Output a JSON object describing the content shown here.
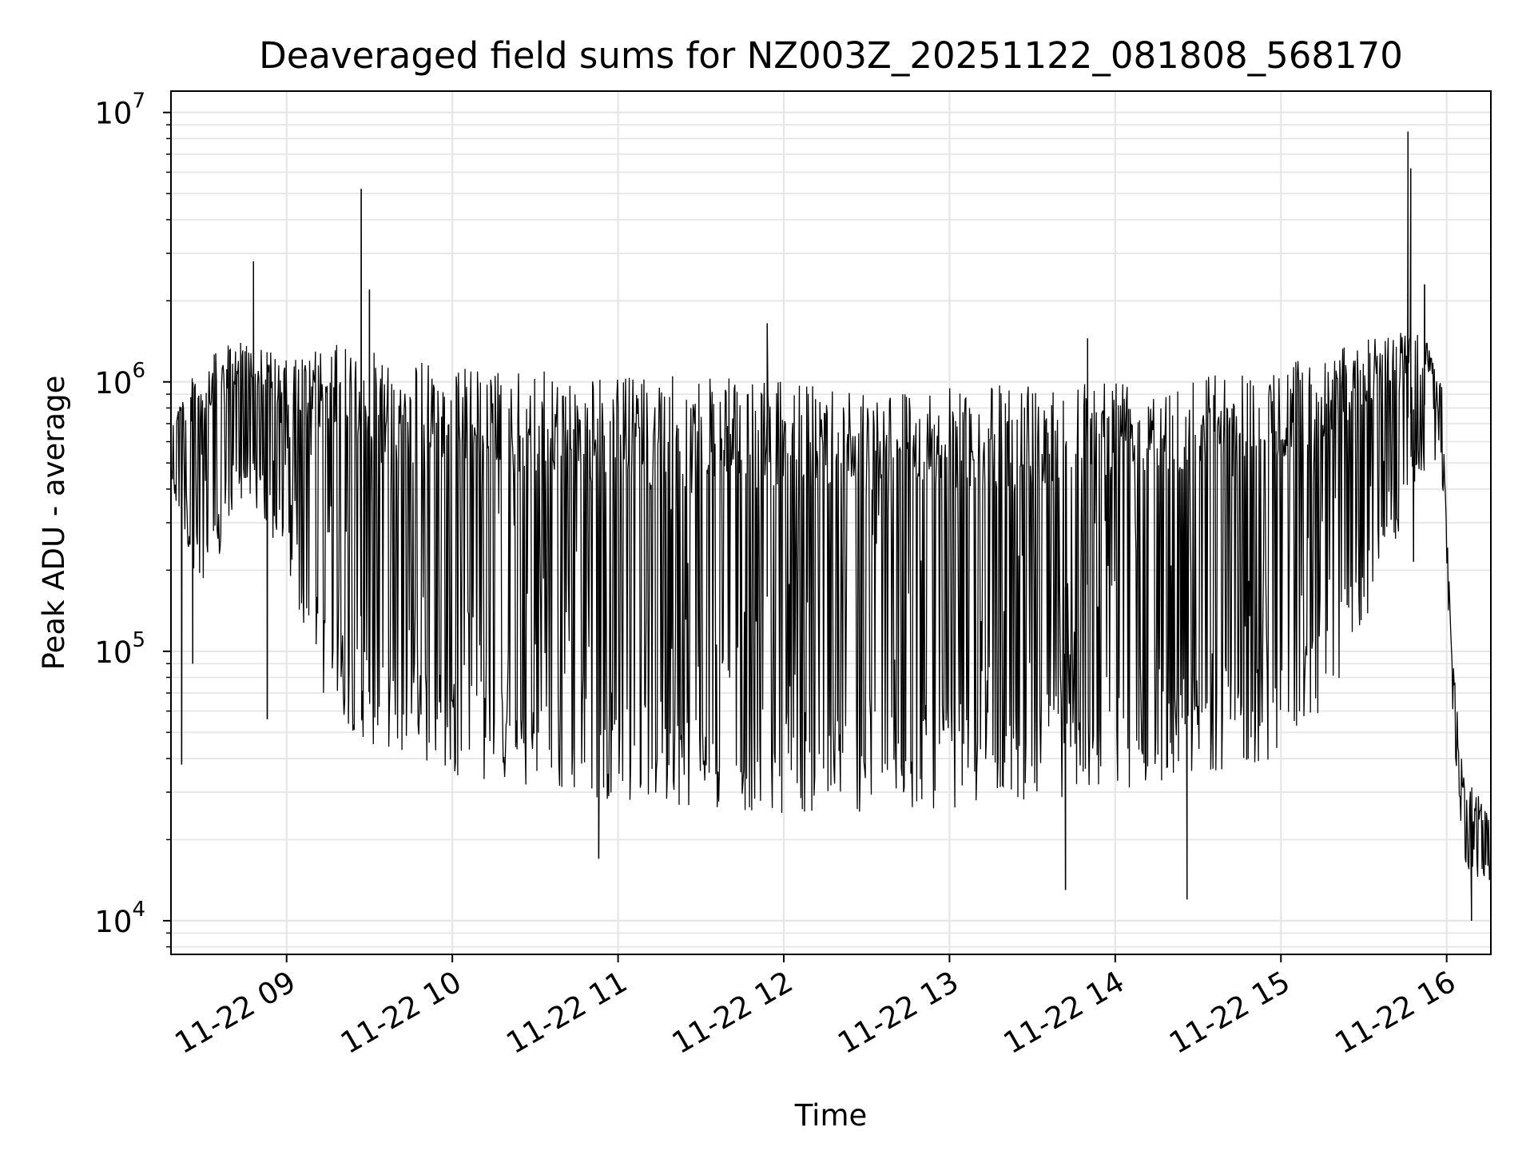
{
  "chart_data": {
    "type": "line",
    "title": "Deaveraged field sums for NZ003Z_20251122_081808_568170",
    "xlabel": "Time",
    "ylabel": "Peak ADU - average",
    "x_type": "datetime",
    "xlim": [
      "2025-11-22T08:18:08",
      "2025-11-22T16:16:00"
    ],
    "ylim": [
      7500,
      12000000
    ],
    "y_scale": "log",
    "y_ticks": [
      {
        "value": 10000,
        "base": "10",
        "exp": "4"
      },
      {
        "value": 100000,
        "base": "10",
        "exp": "5"
      },
      {
        "value": 1000000,
        "base": "10",
        "exp": "6"
      },
      {
        "value": 10000000,
        "base": "10",
        "exp": "7"
      }
    ],
    "x_ticks": [
      {
        "time": "2025-11-22T09:00:00",
        "label": "11-22 09"
      },
      {
        "time": "2025-11-22T10:00:00",
        "label": "11-22 10"
      },
      {
        "time": "2025-11-22T11:00:00",
        "label": "11-22 11"
      },
      {
        "time": "2025-11-22T12:00:00",
        "label": "11-22 12"
      },
      {
        "time": "2025-11-22T13:00:00",
        "label": "11-22 13"
      },
      {
        "time": "2025-11-22T14:00:00",
        "label": "11-22 14"
      },
      {
        "time": "2025-11-22T15:00:00",
        "label": "11-22 15"
      },
      {
        "time": "2025-11-22T16:00:00",
        "label": "11-22 16"
      }
    ],
    "grid": true,
    "line_color": "#000000",
    "grid_color": "#e6e6e6",
    "series": [
      {
        "envelope": [
          {
            "time": "2025-11-22T08:18:08",
            "high": 800000,
            "low": 400000
          },
          {
            "time": "2025-11-22T08:30:00",
            "high": 1200000,
            "low": 150000
          },
          {
            "time": "2025-11-22T08:45:00",
            "high": 1500000,
            "low": 400000
          },
          {
            "time": "2025-11-22T09:00:00",
            "high": 1200000,
            "low": 200000
          },
          {
            "time": "2025-11-22T09:15:00",
            "high": 1400000,
            "low": 60000
          },
          {
            "time": "2025-11-22T09:30:00",
            "high": 1300000,
            "low": 45000
          },
          {
            "time": "2025-11-22T10:00:00",
            "high": 1150000,
            "low": 35000
          },
          {
            "time": "2025-11-22T10:30:00",
            "high": 1100000,
            "low": 30000
          },
          {
            "time": "2025-11-22T11:00:00",
            "high": 1050000,
            "low": 28000
          },
          {
            "time": "2025-11-22T11:30:00",
            "high": 1050000,
            "low": 26000
          },
          {
            "time": "2025-11-22T12:00:00",
            "high": 1000000,
            "low": 25000
          },
          {
            "time": "2025-11-22T12:30:00",
            "high": 1000000,
            "low": 25000
          },
          {
            "time": "2025-11-22T13:00:00",
            "high": 950000,
            "low": 26000
          },
          {
            "time": "2025-11-22T13:30:00",
            "high": 1000000,
            "low": 28000
          },
          {
            "time": "2025-11-22T14:00:00",
            "high": 1100000,
            "low": 30000
          },
          {
            "time": "2025-11-22T14:30:00",
            "high": 1100000,
            "low": 35000
          },
          {
            "time": "2025-11-22T15:00:00",
            "high": 1150000,
            "low": 40000
          },
          {
            "time": "2025-11-22T15:15:00",
            "high": 1300000,
            "low": 60000
          },
          {
            "time": "2025-11-22T15:30:00",
            "high": 1450000,
            "low": 120000
          },
          {
            "time": "2025-11-22T15:50:00",
            "high": 1600000,
            "low": 450000
          },
          {
            "time": "2025-11-22T15:58:00",
            "high": 1100000,
            "low": 500000
          },
          {
            "time": "2025-11-22T16:00:00",
            "high": 300000,
            "low": 200000
          },
          {
            "time": "2025-11-22T16:02:00",
            "high": 100000,
            "low": 60000
          },
          {
            "time": "2025-11-22T16:06:00",
            "high": 35000,
            "low": 15000
          },
          {
            "time": "2025-11-22T16:16:00",
            "high": 25000,
            "low": 14000
          }
        ],
        "spikes": [
          {
            "time": "2025-11-22T08:22:00",
            "value": 38000
          },
          {
            "time": "2025-11-22T08:26:00",
            "value": 90000
          },
          {
            "time": "2025-11-22T08:48:00",
            "value": 2800000
          },
          {
            "time": "2025-11-22T08:53:00",
            "value": 56000
          },
          {
            "time": "2025-11-22T09:27:00",
            "value": 5200000
          },
          {
            "time": "2025-11-22T09:30:00",
            "value": 2200000
          },
          {
            "time": "2025-11-22T10:53:00",
            "value": 17000
          },
          {
            "time": "2025-11-22T11:54:00",
            "value": 1650000
          },
          {
            "time": "2025-11-22T13:42:00",
            "value": 13000
          },
          {
            "time": "2025-11-22T13:50:00",
            "value": 1450000
          },
          {
            "time": "2025-11-22T14:26:00",
            "value": 12000
          },
          {
            "time": "2025-11-22T15:46:00",
            "value": 8500000
          },
          {
            "time": "2025-11-22T15:47:00",
            "value": 6200000
          },
          {
            "time": "2025-11-22T15:48:00",
            "value": 215000
          },
          {
            "time": "2025-11-22T15:52:00",
            "value": 2300000
          },
          {
            "time": "2025-11-22T16:09:00",
            "value": 10000
          }
        ]
      }
    ]
  }
}
